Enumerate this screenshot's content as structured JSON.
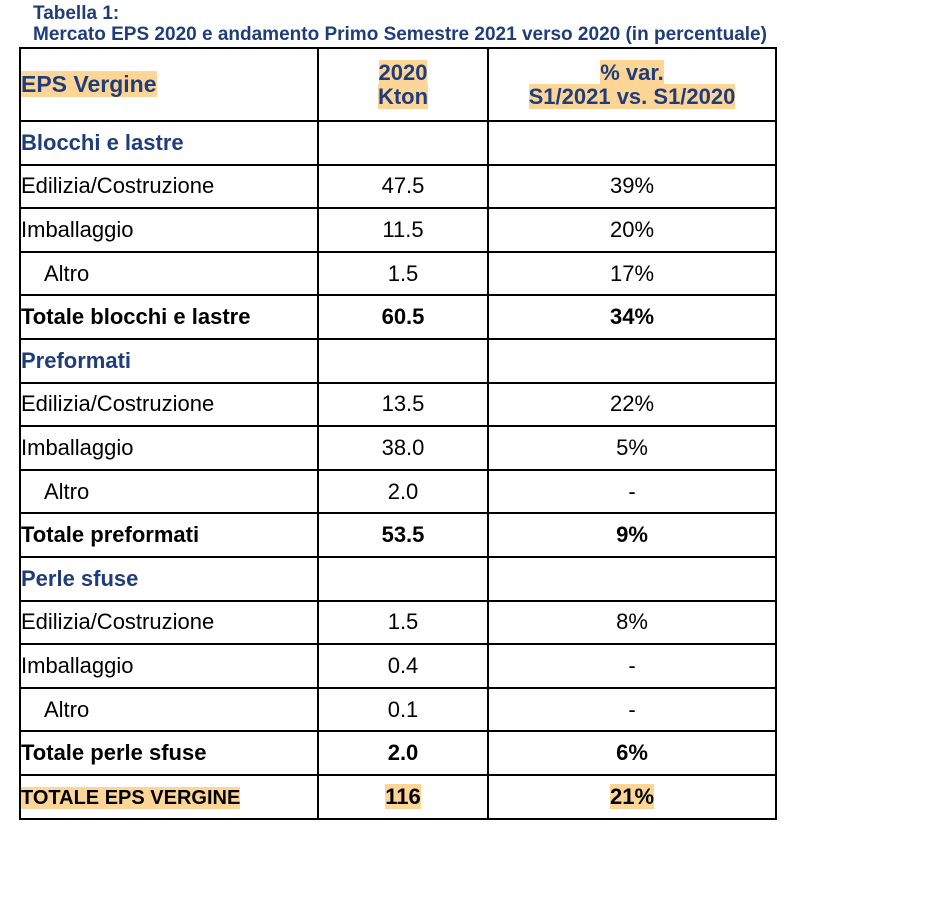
{
  "caption": {
    "line1": "Tabella 1:",
    "line2": "Mercato EPS 2020 e andamento Primo Semestre 2021 verso 2020 (in percentuale)"
  },
  "table": {
    "header": {
      "col1": "EPS Vergine",
      "col2_line1": "2020",
      "col2_line2": "Kton",
      "col3_line1": "% var.",
      "col3_line2": "S1/2021 vs. S1/2020"
    },
    "sections": [
      {
        "title": "Blocchi e lastre",
        "rows": [
          {
            "label": "Edilizia/Costruzione",
            "kton": "47.5",
            "var": "39%"
          },
          {
            "label": "Imballaggio",
            "kton": "11.5",
            "var": "20%"
          },
          {
            "label": "Altro",
            "kton": "1.5",
            "var": "17%"
          }
        ],
        "total": {
          "label": "Totale blocchi e lastre",
          "kton": "60.5",
          "var": "34%"
        }
      },
      {
        "title": "Preformati",
        "rows": [
          {
            "label": "Edilizia/Costruzione",
            "kton": "13.5",
            "var": "22%"
          },
          {
            "label": "Imballaggio",
            "kton": "38.0",
            "var": "5%"
          },
          {
            "label": "Altro",
            "kton": "2.0",
            "var": "-"
          }
        ],
        "total": {
          "label": "Totale preformati",
          "kton": "53.5",
          "var": "9%"
        }
      },
      {
        "title": "Perle sfuse",
        "rows": [
          {
            "label": "Edilizia/Costruzione",
            "kton": "1.5",
            "var": "8%"
          },
          {
            "label": "Imballaggio",
            "kton": "0.4",
            "var": "-"
          },
          {
            "label": "Altro",
            "kton": "0.1",
            "var": "-"
          }
        ],
        "total": {
          "label": "Totale perle sfuse",
          "kton": "2.0",
          "var": "6%"
        }
      }
    ],
    "grand_total": {
      "label": "TOTALE EPS VERGINE",
      "kton": "116",
      "var": "21%"
    }
  },
  "colors": {
    "heading_blue": "#1f3d7a",
    "highlight": "#fcd597"
  }
}
